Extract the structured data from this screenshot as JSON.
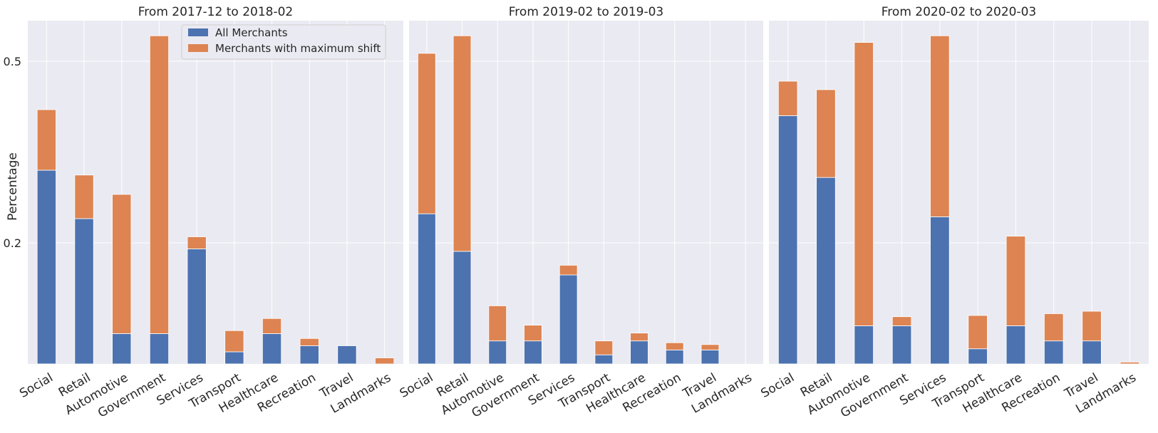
{
  "figure": {
    "ylabel": "Percentage",
    "colors": {
      "all_merchants": "#4c72b0",
      "max_shift": "#dd8452",
      "panel_bg": "#eaeaf2",
      "grid": "#ffffff"
    },
    "legend": {
      "placement": "top-right of first panel"
    }
  },
  "chart_data": [
    {
      "type": "bar",
      "stacked": true,
      "title": "From 2017-12 to 2018-02",
      "categories": [
        "Social",
        "Retail",
        "Automotive",
        "Government",
        "Services",
        "Transport",
        "Healthcare",
        "Recreation",
        "Travel",
        "Landmarks"
      ],
      "series": [
        {
          "name": "All Merchants",
          "values": [
            0.32,
            0.24,
            0.05,
            0.05,
            0.19,
            0.02,
            0.05,
            0.03,
            0.03,
            0.0
          ]
        },
        {
          "name": "Merchants with maximum shift",
          "values": [
            0.1,
            0.072,
            0.23,
            0.492,
            0.02,
            0.035,
            0.025,
            0.012,
            0.0,
            0.01
          ]
        }
      ],
      "yticks": [
        0.2,
        0.5
      ],
      "ylim": [
        0,
        0.567
      ],
      "grid": true,
      "legend": "top-right"
    },
    {
      "type": "bar",
      "stacked": true,
      "title": "From 2019-02 to 2019-03",
      "categories": [
        "Social",
        "Retail",
        "Automotive",
        "Government",
        "Services",
        "Transport",
        "Healthcare",
        "Recreation",
        "Travel",
        "Landmarks"
      ],
      "series": [
        {
          "name": "All Merchants",
          "values": [
            0.248,
            0.186,
            0.038,
            0.038,
            0.147,
            0.015,
            0.038,
            0.023,
            0.023,
            0.0
          ]
        },
        {
          "name": "Merchants with maximum shift",
          "values": [
            0.265,
            0.356,
            0.058,
            0.026,
            0.016,
            0.023,
            0.013,
            0.012,
            0.009,
            0.0
          ]
        }
      ],
      "yticks": [
        0.2,
        0.5
      ],
      "ylim": [
        0,
        0.567
      ],
      "grid": true
    },
    {
      "type": "bar",
      "stacked": true,
      "title": "From 2020-02 to 2020-03",
      "categories": [
        "Social",
        "Retail",
        "Automotive",
        "Government",
        "Services",
        "Transport",
        "Healthcare",
        "Recreation",
        "Travel",
        "Landmarks"
      ],
      "series": [
        {
          "name": "All Merchants",
          "values": [
            0.41,
            0.308,
            0.063,
            0.063,
            0.243,
            0.025,
            0.063,
            0.038,
            0.038,
            0.0
          ]
        },
        {
          "name": "Merchants with maximum shift",
          "values": [
            0.057,
            0.145,
            0.468,
            0.015,
            0.299,
            0.055,
            0.148,
            0.045,
            0.049,
            0.003
          ]
        }
      ],
      "yticks": [
        0.2,
        0.5
      ],
      "ylim": [
        0,
        0.567
      ],
      "grid": true
    }
  ]
}
